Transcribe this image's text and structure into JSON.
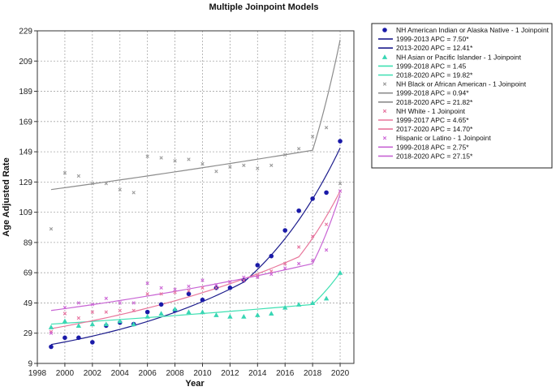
{
  "chart_data": {
    "type": "scatter",
    "title": "Multiple Joinpoint Models",
    "xlabel": "Year",
    "ylabel": "Age Adjusted Rate",
    "xlim": [
      1998,
      2021
    ],
    "ylim": [
      9,
      229
    ],
    "x_ticks": [
      1998,
      2000,
      2002,
      2004,
      2006,
      2008,
      2010,
      2012,
      2014,
      2016,
      2018,
      2020
    ],
    "y_ticks": [
      9,
      29,
      49,
      69,
      89,
      109,
      129,
      149,
      169,
      189,
      209,
      229
    ],
    "grid": true,
    "legend_position": "right",
    "colors": {
      "aian_points": "#1a1aa8",
      "aian_line": "#1c1c8c",
      "api_points": "#38d6b4",
      "api_line": "#3fe0b2",
      "black_points": "#9a9a9a",
      "black_line": "#8c8c8c",
      "white_points": "#e6739f",
      "white_line": "#e8769b",
      "hispanic_points": "#cc66d6",
      "hispanic_line": "#c864d4"
    },
    "series": [
      {
        "name": "NH American Indian or Alaska Native - 1 Joinpoint",
        "key": "aian",
        "marker": "circle",
        "x": [
          1999,
          2000,
          2001,
          2002,
          2003,
          2004,
          2005,
          2006,
          2007,
          2008,
          2009,
          2010,
          2011,
          2012,
          2013,
          2014,
          2015,
          2016,
          2017,
          2018,
          2019,
          2020
        ],
        "y": [
          20,
          26,
          26,
          23,
          34,
          36,
          35,
          43,
          48,
          44,
          55,
          51,
          59,
          59,
          64,
          74,
          80,
          97,
          110,
          118,
          122,
          156
        ],
        "fit": {
          "x": [
            1999,
            2013,
            2020
          ],
          "y": [
            21.5,
            62.8,
            151.5
          ]
        }
      },
      {
        "name": "NH Asian or Pacific Islander - 1 Joinpoint",
        "key": "api",
        "marker": "triangle",
        "x": [
          1999,
          2000,
          2001,
          2002,
          2003,
          2004,
          2005,
          2006,
          2007,
          2008,
          2009,
          2010,
          2011,
          2012,
          2013,
          2014,
          2015,
          2016,
          2017,
          2018,
          2019,
          2020
        ],
        "y": [
          33,
          37,
          34,
          35,
          35,
          37,
          35,
          40,
          42,
          45,
          43,
          43,
          41,
          40,
          40,
          41,
          42,
          46,
          48,
          49,
          52,
          69
        ],
        "fit": {
          "x": [
            1999,
            2018,
            2020
          ],
          "y": [
            35,
            48,
            69
          ]
        }
      },
      {
        "name": "NH Black or African American - 1 Joinpoint",
        "key": "black",
        "marker": "cross",
        "x": [
          1999,
          2000,
          2001,
          2002,
          2003,
          2004,
          2005,
          2006,
          2007,
          2008,
          2009,
          2010,
          2011,
          2012,
          2013,
          2014,
          2015,
          2016,
          2017,
          2018,
          2019,
          2020
        ],
        "y": [
          98,
          135,
          133,
          128,
          128,
          124,
          122,
          146,
          145,
          143,
          144,
          141,
          136,
          139,
          140,
          138,
          140,
          147,
          151,
          159,
          165,
          128
        ],
        "fit": {
          "x": [
            1999,
            2018,
            2020
          ],
          "y": [
            124,
            150,
            223
          ]
        }
      },
      {
        "name": "NH White - 1 Joinpoint",
        "key": "white",
        "marker": "cross",
        "x": [
          1999,
          2000,
          2001,
          2002,
          2003,
          2004,
          2005,
          2006,
          2007,
          2008,
          2009,
          2010,
          2011,
          2012,
          2013,
          2014,
          2015,
          2016,
          2017,
          2018,
          2019,
          2020
        ],
        "y": [
          30,
          42,
          39,
          43,
          43,
          44,
          44,
          55,
          55,
          56,
          57,
          59,
          59,
          63,
          64,
          67,
          70,
          75,
          86,
          93,
          101,
          123
        ],
        "fit": {
          "x": [
            1999,
            2017,
            2020
          ],
          "y": [
            32,
            79.5,
            123
          ]
        }
      },
      {
        "name": "Hispanic or Latino - 1 Joinpoint",
        "key": "hispanic",
        "marker": "cross",
        "x": [
          1999,
          2000,
          2001,
          2002,
          2003,
          2004,
          2005,
          2006,
          2007,
          2008,
          2009,
          2010,
          2011,
          2012,
          2013,
          2014,
          2015,
          2016,
          2017,
          2018,
          2019,
          2020
        ],
        "y": [
          29,
          46,
          49,
          48,
          52,
          49,
          49,
          62,
          59,
          58,
          60,
          64,
          61,
          63,
          66,
          66,
          68,
          72,
          75,
          77,
          84,
          123
        ],
        "fit": {
          "x": [
            1999,
            2018,
            2020
          ],
          "y": [
            44,
            75,
            121
          ]
        }
      }
    ],
    "legend": [
      {
        "kind": "point",
        "shape": "circle",
        "color_key": "aian_points",
        "label": "NH American Indian or Alaska Native - 1 Joinpoint"
      },
      {
        "kind": "line",
        "color_key": "aian_line",
        "label": "1999-2013 APC  =  7.50*"
      },
      {
        "kind": "line",
        "color_key": "aian_line",
        "label": "2013-2020 APC  = 12.41*"
      },
      {
        "kind": "point",
        "shape": "triangle",
        "color_key": "api_points",
        "label": "NH Asian or Pacific Islander - 1 Joinpoint"
      },
      {
        "kind": "line",
        "color_key": "api_line",
        "label": "1999-2018 APC  =  1.45"
      },
      {
        "kind": "line",
        "color_key": "api_line",
        "label": "2018-2020 APC  = 19.82*"
      },
      {
        "kind": "point",
        "shape": "cross",
        "color_key": "black_points",
        "label": "NH Black or African American - 1 Joinpoint"
      },
      {
        "kind": "line",
        "color_key": "black_line",
        "label": "1999-2018 APC  =  0.94*"
      },
      {
        "kind": "line",
        "color_key": "black_line",
        "label": "2018-2020 APC  = 21.82*"
      },
      {
        "kind": "point",
        "shape": "cross",
        "color_key": "white_points",
        "label": "NH White - 1 Joinpoint"
      },
      {
        "kind": "line",
        "color_key": "white_line",
        "label": "1999-2017 APC  =  4.65*"
      },
      {
        "kind": "line",
        "color_key": "white_line",
        "label": "2017-2020 APC  = 14.70*"
      },
      {
        "kind": "point",
        "shape": "cross",
        "color_key": "hispanic_points",
        "label": "Hispanic or Latino - 1 Joinpoint"
      },
      {
        "kind": "line",
        "color_key": "hispanic_line",
        "label": "1999-2018 APC  =  2.75*"
      },
      {
        "kind": "line",
        "color_key": "hispanic_line",
        "label": "2018-2020 APC  = 27.15*"
      }
    ]
  }
}
